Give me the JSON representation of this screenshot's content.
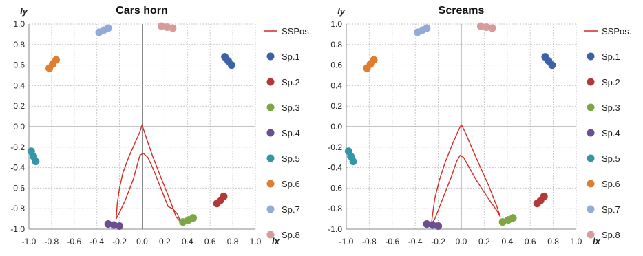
{
  "chart_data": [
    {
      "type": "scatter",
      "title": "Cars horn",
      "xlabel": "lx",
      "ylabel": "ly",
      "xlim": [
        -1.0,
        1.0
      ],
      "ylim": [
        -1.0,
        1.0
      ],
      "grid": true,
      "legend_position": "right",
      "xticks": [
        "-1.0",
        "-0.8",
        "-0.6",
        "-0.4",
        "-0.2",
        "0.0",
        "0.2",
        "0.4",
        "0.6",
        "0.8",
        "1.0"
      ],
      "yticks": [
        "-1.0",
        "-0.8",
        "-0.6",
        "-0.4",
        "-0.2",
        "0.0",
        "0.2",
        "0.4",
        "0.6",
        "0.8",
        "1.0"
      ],
      "line_series": {
        "name": "SSPos.",
        "color": "#d62a22",
        "points": [
          [
            0.0,
            0.02
          ],
          [
            -0.02,
            -0.05
          ],
          [
            -0.06,
            -0.15
          ],
          [
            -0.12,
            -0.3
          ],
          [
            -0.17,
            -0.45
          ],
          [
            -0.2,
            -0.6
          ],
          [
            -0.22,
            -0.75
          ],
          [
            -0.23,
            -0.9
          ],
          [
            -0.21,
            -0.86
          ],
          [
            -0.15,
            -0.72
          ],
          [
            -0.08,
            -0.52
          ],
          [
            -0.04,
            -0.36
          ],
          [
            -0.02,
            -0.28
          ],
          [
            0.01,
            -0.26
          ],
          [
            0.05,
            -0.3
          ],
          [
            0.1,
            -0.42
          ],
          [
            0.15,
            -0.56
          ],
          [
            0.2,
            -0.7
          ],
          [
            0.23,
            -0.78
          ],
          [
            0.27,
            -0.8
          ],
          [
            0.31,
            -0.85
          ],
          [
            0.34,
            -0.93
          ],
          [
            0.3,
            -0.88
          ],
          [
            0.24,
            -0.7
          ],
          [
            0.16,
            -0.48
          ],
          [
            0.09,
            -0.28
          ],
          [
            0.04,
            -0.12
          ],
          [
            0.01,
            -0.02
          ],
          [
            0.0,
            0.02
          ]
        ]
      },
      "series": [
        {
          "name": "Sp.1",
          "color": "#3d62a8",
          "points": [
            [
              0.73,
              0.68
            ],
            [
              0.76,
              0.64
            ],
            [
              0.79,
              0.6
            ]
          ]
        },
        {
          "name": "Sp.2",
          "color": "#b23a36",
          "points": [
            [
              0.66,
              -0.75
            ],
            [
              0.69,
              -0.72
            ],
            [
              0.72,
              -0.68
            ]
          ]
        },
        {
          "name": "Sp.3",
          "color": "#7fa645",
          "points": [
            [
              0.36,
              -0.93
            ],
            [
              0.41,
              -0.91
            ],
            [
              0.45,
              -0.89
            ]
          ]
        },
        {
          "name": "Sp.4",
          "color": "#6b4e91",
          "points": [
            [
              -0.3,
              -0.95
            ],
            [
              -0.25,
              -0.96
            ],
            [
              -0.2,
              -0.97
            ]
          ]
        },
        {
          "name": "Sp.5",
          "color": "#3596aa",
          "points": [
            [
              -0.98,
              -0.24
            ],
            [
              -0.96,
              -0.29
            ],
            [
              -0.94,
              -0.34
            ]
          ]
        },
        {
          "name": "Sp.6",
          "color": "#e07d2f",
          "points": [
            [
              -0.82,
              0.57
            ],
            [
              -0.79,
              0.61
            ],
            [
              -0.76,
              0.65
            ]
          ]
        },
        {
          "name": "Sp.7",
          "color": "#92acd7",
          "points": [
            [
              -0.38,
              0.92
            ],
            [
              -0.34,
              0.94
            ],
            [
              -0.3,
              0.96
            ]
          ]
        },
        {
          "name": "Sp.8",
          "color": "#d99a9a",
          "points": [
            [
              0.17,
              0.98
            ],
            [
              0.22,
              0.97
            ],
            [
              0.27,
              0.96
            ]
          ]
        }
      ]
    },
    {
      "type": "scatter",
      "title": "Screams",
      "xlabel": "lx",
      "ylabel": "ly",
      "xlim": [
        -1.0,
        1.0
      ],
      "ylim": [
        -1.0,
        1.0
      ],
      "grid": true,
      "legend_position": "right",
      "xticks": [
        "-1.0",
        "-0.8",
        "-0.6",
        "-0.4",
        "-0.2",
        "0.0",
        "0.2",
        "0.4",
        "0.6",
        "0.8",
        "1.0"
      ],
      "yticks": [
        "-1.0",
        "-0.8",
        "-0.6",
        "-0.4",
        "-0.2",
        "0.0",
        "0.2",
        "0.4",
        "0.6",
        "0.8",
        "1.0"
      ],
      "line_series": {
        "name": "SSPos.",
        "color": "#d62a22",
        "points": [
          [
            0.0,
            0.02
          ],
          [
            -0.03,
            -0.05
          ],
          [
            -0.08,
            -0.18
          ],
          [
            -0.14,
            -0.35
          ],
          [
            -0.19,
            -0.52
          ],
          [
            -0.23,
            -0.7
          ],
          [
            -0.25,
            -0.86
          ],
          [
            -0.26,
            -0.95
          ],
          [
            -0.23,
            -0.9
          ],
          [
            -0.16,
            -0.7
          ],
          [
            -0.09,
            -0.5
          ],
          [
            -0.04,
            -0.34
          ],
          [
            -0.01,
            -0.28
          ],
          [
            0.02,
            -0.3
          ],
          [
            0.07,
            -0.4
          ],
          [
            0.13,
            -0.52
          ],
          [
            0.2,
            -0.64
          ],
          [
            0.26,
            -0.74
          ],
          [
            0.31,
            -0.82
          ],
          [
            0.34,
            -0.88
          ],
          [
            0.31,
            -0.78
          ],
          [
            0.24,
            -0.58
          ],
          [
            0.16,
            -0.38
          ],
          [
            0.09,
            -0.2
          ],
          [
            0.04,
            -0.07
          ],
          [
            0.01,
            0.0
          ],
          [
            0.0,
            0.02
          ]
        ]
      },
      "series": [
        {
          "name": "Sp.1",
          "color": "#3d62a8",
          "points": [
            [
              0.73,
              0.68
            ],
            [
              0.76,
              0.64
            ],
            [
              0.79,
              0.6
            ]
          ]
        },
        {
          "name": "Sp.2",
          "color": "#b23a36",
          "points": [
            [
              0.66,
              -0.75
            ],
            [
              0.69,
              -0.72
            ],
            [
              0.72,
              -0.68
            ]
          ]
        },
        {
          "name": "Sp.3",
          "color": "#7fa645",
          "points": [
            [
              0.36,
              -0.93
            ],
            [
              0.41,
              -0.91
            ],
            [
              0.45,
              -0.89
            ]
          ]
        },
        {
          "name": "Sp.4",
          "color": "#6b4e91",
          "points": [
            [
              -0.3,
              -0.95
            ],
            [
              -0.25,
              -0.96
            ],
            [
              -0.2,
              -0.97
            ]
          ]
        },
        {
          "name": "Sp.5",
          "color": "#3596aa",
          "points": [
            [
              -0.98,
              -0.24
            ],
            [
              -0.96,
              -0.29
            ],
            [
              -0.94,
              -0.34
            ]
          ]
        },
        {
          "name": "Sp.6",
          "color": "#e07d2f",
          "points": [
            [
              -0.82,
              0.57
            ],
            [
              -0.79,
              0.61
            ],
            [
              -0.76,
              0.65
            ]
          ]
        },
        {
          "name": "Sp.7",
          "color": "#92acd7",
          "points": [
            [
              -0.38,
              0.92
            ],
            [
              -0.34,
              0.94
            ],
            [
              -0.3,
              0.96
            ]
          ]
        },
        {
          "name": "Sp.8",
          "color": "#d99a9a",
          "points": [
            [
              0.17,
              0.98
            ],
            [
              0.22,
              0.97
            ],
            [
              0.27,
              0.96
            ]
          ]
        }
      ]
    }
  ]
}
